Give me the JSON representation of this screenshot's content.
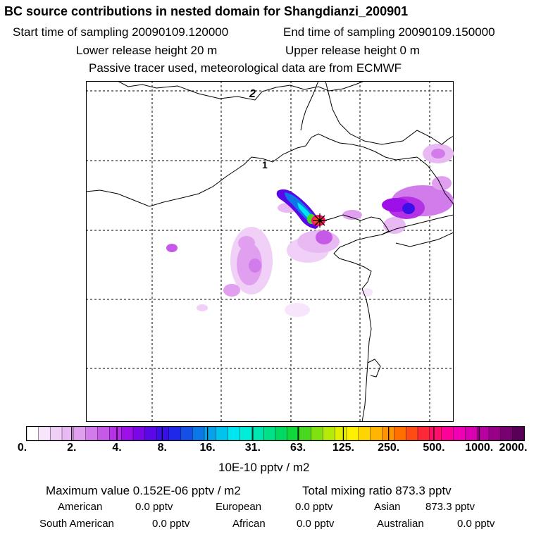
{
  "title": "BC  source contributions in nested domain for Shangdianzi_200901",
  "sampling": {
    "start": "Start time of sampling 20090109.120000",
    "end": "End time of sampling 20090109.150000"
  },
  "release": {
    "lower": "Lower release height   20 m",
    "upper": "Upper release height    0 m"
  },
  "tracer_note": "Passive tracer used, meteorological data are from ECMWF",
  "map": {
    "contour_labels": [
      "2",
      "1"
    ],
    "receptor_marker": "receptor-star-icon"
  },
  "colorbar": {
    "tick_labels": [
      "0.",
      "2.",
      "4.",
      "8.",
      "16.",
      "31.",
      "63.",
      "125.",
      "250.",
      "500.",
      "1000.",
      "2000."
    ],
    "colors": [
      "#ffffff",
      "#f7e6fb",
      "#f0d0f7",
      "#e8b9f3",
      "#e19fef",
      "#d27cec",
      "#c55ae8",
      "#b431e6",
      "#9d10e8",
      "#7a07e8",
      "#5a08e8",
      "#3a0fe8",
      "#1f28e8",
      "#1550e6",
      "#0c78e8",
      "#06a2ea",
      "#00c4ee",
      "#00e6f0",
      "#00eed8",
      "#00e6b0",
      "#00e088",
      "#00da60",
      "#10d83a",
      "#48d820",
      "#80e010",
      "#b6ea08",
      "#e0f000",
      "#fff000",
      "#ffd400",
      "#ffb400",
      "#ff9400",
      "#ff7000",
      "#ff4c14",
      "#ff2838",
      "#ff0e6a",
      "#ff0098",
      "#f000b4",
      "#d800b0",
      "#b800a0",
      "#980088",
      "#780070",
      "#580058"
    ],
    "units": "10E-10 pptv / m2"
  },
  "summary": {
    "maximum": "Maximum value  0.152E-06 pptv / m2",
    "total": "Total mixing ratio      873.3 pptv"
  },
  "regions": [
    {
      "name": "American",
      "value": "0.0 pptv"
    },
    {
      "name": "European",
      "value": "0.0 pptv"
    },
    {
      "name": "Asian",
      "value": "873.3 pptv"
    },
    {
      "name": "South American",
      "value": "0.0 pptv"
    },
    {
      "name": "African",
      "value": "0.0 pptv"
    },
    {
      "name": "Australian",
      "value": "0.0 pptv"
    }
  ]
}
